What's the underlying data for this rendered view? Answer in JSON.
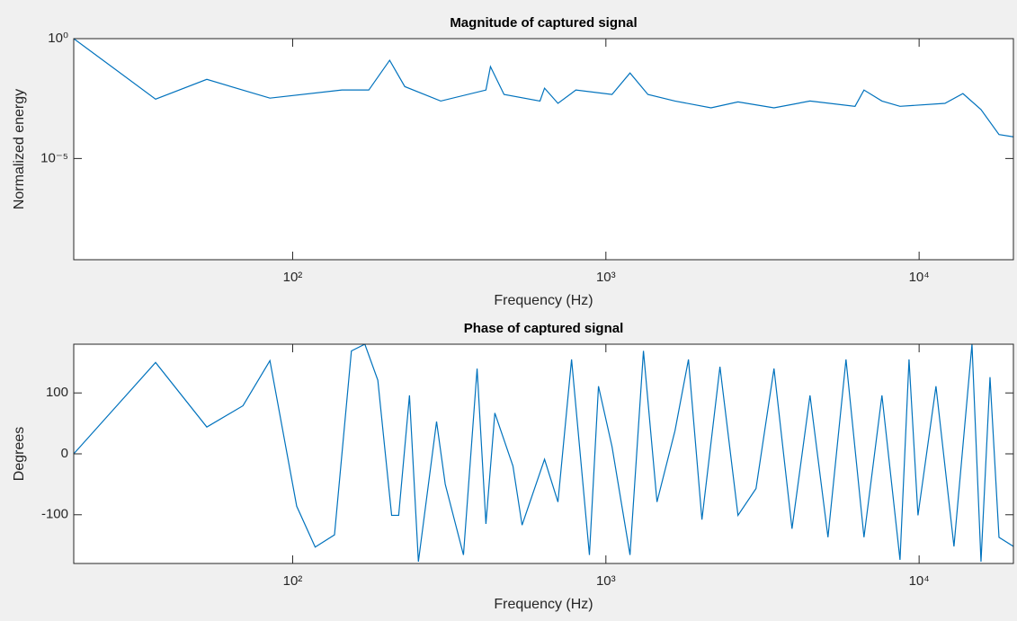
{
  "chart_data": [
    {
      "type": "line",
      "title": "Magnitude of captured signal",
      "xlabel": "Frequency (Hz)",
      "ylabel": "Normalized energy",
      "xscale": "log",
      "yscale": "log",
      "color": "#0072bd",
      "x": [
        20,
        36.5,
        53.2,
        84.6,
        143.6,
        175,
        204,
        228,
        297,
        414,
        428,
        473,
        616,
        637,
        703,
        802,
        1046,
        1194,
        1362,
        1662,
        2166,
        2641,
        3441,
        4484,
        6243,
        6668,
        7609,
        8690,
        12090,
        13800,
        15760,
        17990,
        20000
      ],
      "values": [
        1,
        0.003,
        0.02,
        0.0033,
        0.0072,
        0.0072,
        0.125,
        0.01,
        0.0025,
        0.0072,
        0.068,
        0.0047,
        0.0025,
        0.0086,
        0.002,
        0.0072,
        0.0047,
        0.037,
        0.0047,
        0.0025,
        0.0013,
        0.0023,
        0.0013,
        0.0025,
        0.0015,
        0.0072,
        0.0025,
        0.0015,
        0.002,
        0.0051,
        0.0011,
        0.0001,
        8e-05
      ],
      "xlim": [
        20,
        20000
      ],
      "ylim": [
        6e-10,
        1
      ],
      "xticks": [
        {
          "value": 100,
          "label": "10²"
        },
        {
          "value": 1000,
          "label": "10³"
        },
        {
          "value": 10000,
          "label": "10⁴"
        }
      ],
      "yticks": [
        {
          "value": 1e-05,
          "label": "10⁻⁵"
        },
        {
          "value": 1,
          "label": "10⁰"
        }
      ]
    },
    {
      "type": "line",
      "title": "Phase of captured signal",
      "xlabel": "Frequency (Hz)",
      "ylabel": "Degrees",
      "xscale": "log",
      "yscale": "linear",
      "color": "#0072bd",
      "x": [
        20,
        36.5,
        53.2,
        69.4,
        84.6,
        103,
        118,
        136,
        154,
        170,
        187,
        207,
        218,
        236,
        252,
        288,
        307,
        351,
        388,
        414,
        442,
        505,
        540,
        637,
        703,
        777,
        886,
        947,
        1046,
        1194,
        1318,
        1456,
        1662,
        1835,
        2026,
        2313,
        2641,
        3015,
        3441,
        3928,
        4484,
        5117,
        5842,
        6668,
        7609,
        8690,
        9285,
        9917,
        11320,
        12920,
        14750,
        15760,
        16840,
        17990,
        20000
      ],
      "values": [
        0,
        150,
        44,
        79,
        153,
        -86,
        -153,
        -133,
        169,
        180,
        121,
        -101,
        -101,
        96,
        -177,
        53,
        -50,
        -166,
        140,
        -115,
        67,
        -20,
        -117,
        -9,
        -79,
        155,
        -166,
        111,
        12,
        -166,
        169,
        -79,
        38,
        155,
        -108,
        143,
        -101,
        -57,
        140,
        -123,
        96,
        -137,
        155,
        -137,
        96,
        -174,
        155,
        -101,
        111,
        -152,
        180,
        -177,
        126,
        -137,
        -152
      ],
      "xlim": [
        20,
        20000
      ],
      "ylim": [
        -180,
        180
      ],
      "xticks": [
        {
          "value": 100,
          "label": "10²"
        },
        {
          "value": 1000,
          "label": "10³"
        },
        {
          "value": 10000,
          "label": "10⁴"
        }
      ],
      "yticks": [
        -100,
        0,
        100
      ]
    }
  ]
}
